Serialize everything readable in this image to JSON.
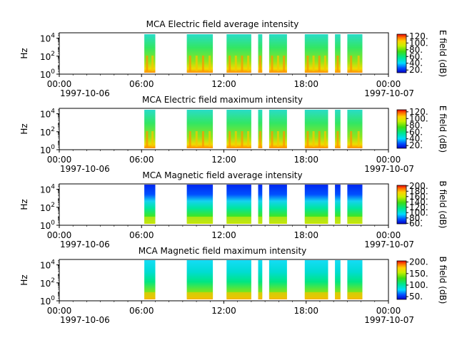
{
  "chart_data": [
    {
      "type": "heatmap",
      "title": "MCA  Electric field average intensity",
      "ylabel": "Hz",
      "colorbar_label": "E field (dB)",
      "colorbar_range": [
        12,
        126
      ],
      "colorbar_ticks": [
        "20.",
        "40.",
        "60.",
        "80.",
        "100.",
        "120."
      ],
      "colorbar_values": [
        20,
        40,
        60,
        80,
        100,
        120
      ],
      "palette": "green-cyan background, yellow-red at low frequencies",
      "coverage_hours": [
        [
          6.2,
          7.0
        ],
        [
          9.3,
          11.2
        ],
        [
          12.2,
          14.0
        ],
        [
          14.5,
          14.8
        ],
        [
          15.3,
          16.6
        ],
        [
          17.9,
          19.6
        ],
        [
          20.1,
          20.5
        ],
        [
          21.0,
          22.1
        ]
      ]
    },
    {
      "type": "heatmap",
      "title": "MCA  Electric field maximum intensity",
      "ylabel": "Hz",
      "colorbar_label": "E field (dB)",
      "colorbar_range": [
        12,
        126
      ],
      "colorbar_ticks": [
        "20.",
        "40.",
        "60.",
        "80.",
        "100.",
        "120."
      ],
      "colorbar_values": [
        20,
        40,
        60,
        80,
        100,
        120
      ],
      "palette": "green-cyan background, yellow-red at low frequencies",
      "coverage_hours": [
        [
          6.2,
          7.0
        ],
        [
          9.3,
          11.2
        ],
        [
          12.2,
          14.0
        ],
        [
          14.5,
          14.8
        ],
        [
          15.3,
          16.6
        ],
        [
          17.9,
          19.6
        ],
        [
          20.1,
          20.5
        ],
        [
          21.0,
          22.1
        ]
      ]
    },
    {
      "type": "heatmap",
      "title": "MCA  Magnetic field average intensity",
      "ylabel": "Hz",
      "colorbar_label": "B field (dB)",
      "colorbar_range": [
        58,
        202
      ],
      "colorbar_ticks": [
        "60.",
        "80.",
        "100.",
        "120.",
        "140.",
        "160.",
        "180.",
        "200."
      ],
      "colorbar_values": [
        60,
        80,
        100,
        120,
        140,
        160,
        180,
        200
      ],
      "palette": "blue at high frequencies, cyan/green mid, yellow at low frequencies",
      "coverage_hours": [
        [
          6.2,
          7.0
        ],
        [
          9.3,
          11.2
        ],
        [
          12.2,
          14.0
        ],
        [
          14.5,
          14.8
        ],
        [
          15.3,
          16.6
        ],
        [
          17.9,
          19.6
        ],
        [
          20.1,
          20.5
        ],
        [
          21.0,
          22.1
        ]
      ]
    },
    {
      "type": "heatmap",
      "title": "MCA  Magnetic field maximum intensity",
      "ylabel": "Hz",
      "colorbar_label": "B field (dB)",
      "colorbar_range": [
        38,
        205
      ],
      "colorbar_ticks": [
        "50.",
        "100.",
        "150.",
        "200."
      ],
      "colorbar_values": [
        50,
        100,
        150,
        200
      ],
      "palette": "cyan at high frequencies, green mid, yellow-orange at low frequencies",
      "coverage_hours": [
        [
          6.2,
          7.0
        ],
        [
          9.3,
          11.2
        ],
        [
          12.2,
          14.0
        ],
        [
          14.5,
          14.8
        ],
        [
          15.3,
          16.6
        ],
        [
          17.9,
          19.6
        ],
        [
          20.1,
          20.5
        ],
        [
          21.0,
          22.1
        ]
      ]
    }
  ],
  "x_axis": {
    "range_hours": [
      0,
      24
    ],
    "tick_hours": [
      0,
      6,
      12,
      18,
      24
    ],
    "tick_labels": [
      "00:00",
      "06:00",
      "12:00",
      "18:00",
      "00:00"
    ],
    "start_date": "1997-10-06",
    "end_date": "1997-10-07"
  },
  "y_axis": {
    "scale": "log",
    "range_exp": [
      0,
      4.6
    ],
    "tick_exponents": [
      0,
      2,
      4
    ],
    "tick_base": "10"
  }
}
